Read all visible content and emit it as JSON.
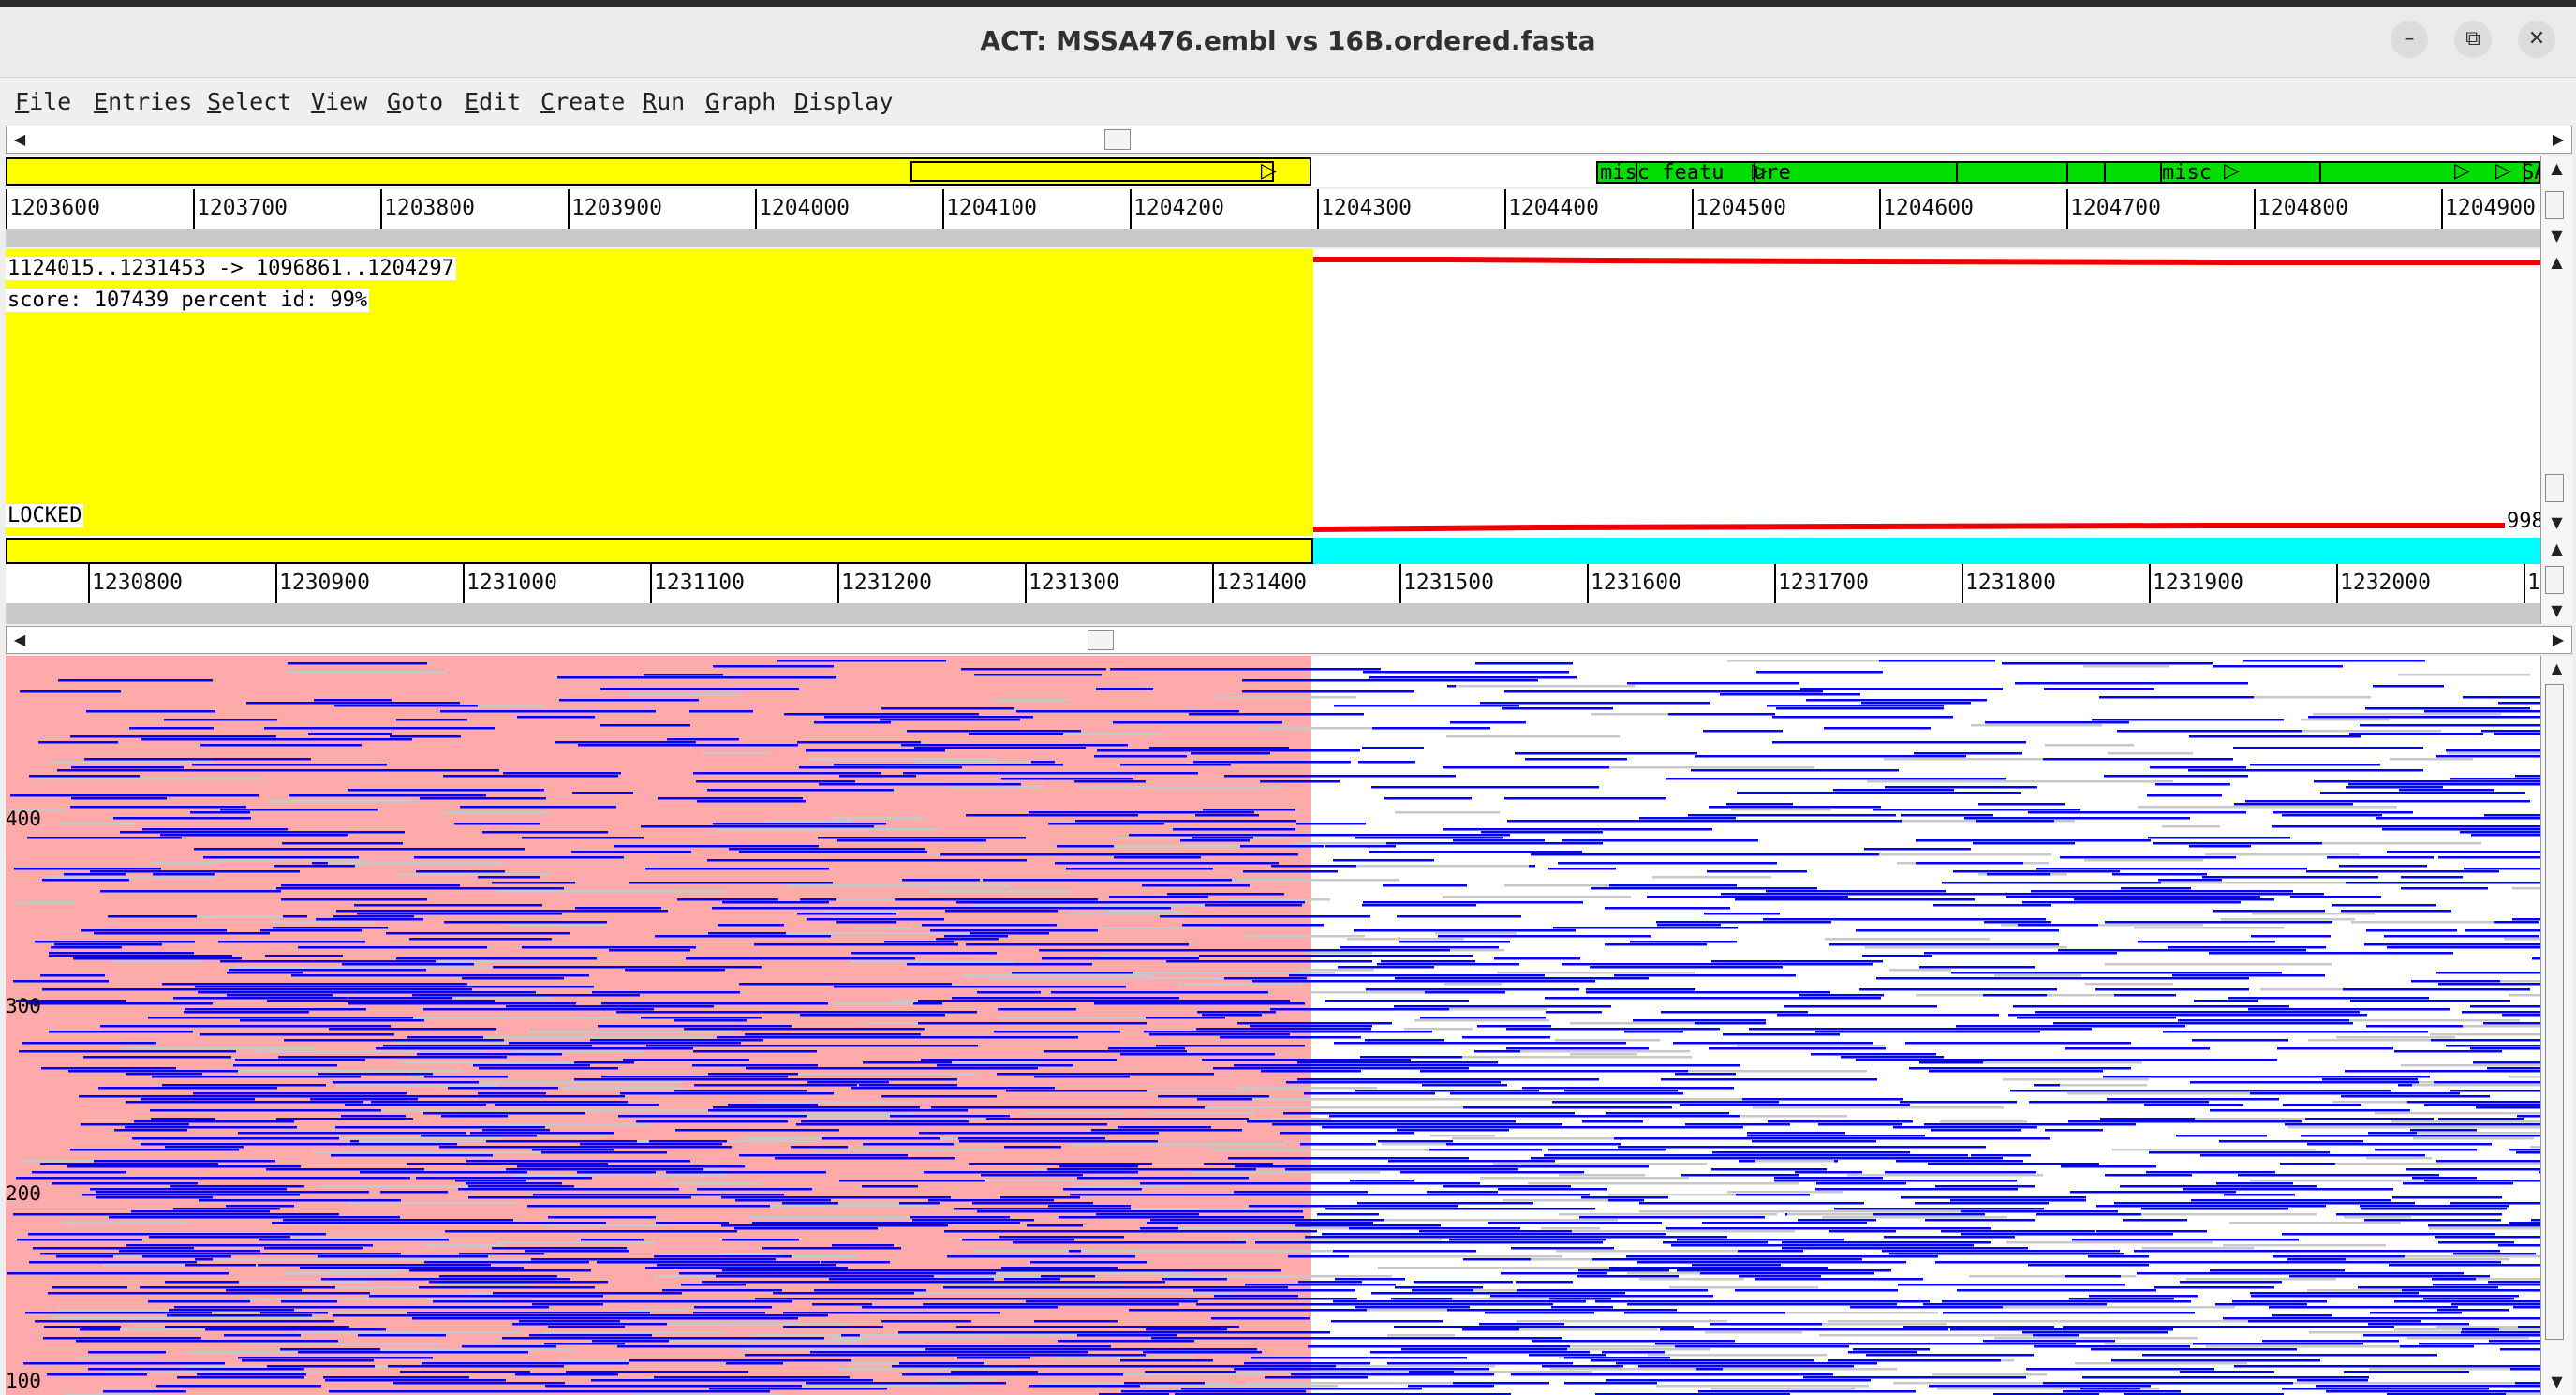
{
  "window": {
    "title": "ACT: MSSA476.embl vs 16B.ordered.fasta",
    "controls": [
      "–",
      "⧉",
      "✕"
    ]
  },
  "menu": [
    {
      "key": "F",
      "rest": "ile"
    },
    {
      "key": "E",
      "rest": "ntries"
    },
    {
      "key": "S",
      "rest": "elect"
    },
    {
      "key": "V",
      "rest": "iew"
    },
    {
      "key": "G",
      "rest": "oto"
    },
    {
      "key": "E",
      "rest": "dit"
    },
    {
      "key": "C",
      "rest": "reate"
    },
    {
      "key": "R",
      "rest": "un"
    },
    {
      "key": "G",
      "rest": "raph"
    },
    {
      "key": "D",
      "rest": "isplay"
    }
  ],
  "top_ruler": [
    "1203600",
    "1203700",
    "1203800",
    "1203900",
    "1204000",
    "1204100",
    "1204200",
    "1204300",
    "1204400",
    "1204500",
    "1204600",
    "1204700",
    "1204800",
    "1204900"
  ],
  "bottom_ruler": [
    "1230800",
    "1230900",
    "1231000",
    "1231100",
    "1231200",
    "1231300",
    "1231400",
    "1231500",
    "1231600",
    "1231700",
    "1231800",
    "1231900",
    "1232000",
    "1"
  ],
  "features": {
    "misc_feature_1": "misc_featu",
    "misc_feature_1b": "ure",
    "misc_feature_2": "misc",
    "edge_label": "SA"
  },
  "comparison": {
    "match_line": "1124015..1231453 -> 1096861..1204297",
    "score_line": "score: 107439  percent id: 99%",
    "status": "LOCKED",
    "right_value": "998"
  },
  "bam_axis": [
    "400",
    "300",
    "200",
    "100"
  ],
  "colors": {
    "selection_yellow": "#ffff00",
    "feature_green": "#00dd00",
    "match_red": "#ee0000",
    "bottom_cyan": "#00ffff",
    "read_blue": "#0000ff",
    "selected_pink": "#ffaaaa",
    "read_grey": "#c8c8c8"
  }
}
